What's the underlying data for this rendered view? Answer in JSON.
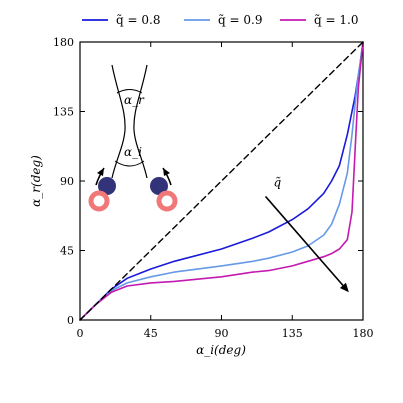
{
  "chart_data": {
    "type": "line",
    "title": "",
    "xlabel": "α_i(deg)",
    "ylabel": "α_r(deg)",
    "xlim": [
      0,
      180
    ],
    "ylim": [
      0,
      180
    ],
    "xticks": [
      "0",
      "45",
      "90",
      "135",
      "180"
    ],
    "yticks": [
      "0",
      "45",
      "90",
      "135",
      "180"
    ],
    "legend_position": "top",
    "series": [
      {
        "name": "q̃ = 0.8",
        "color": "#1a1adb",
        "x": [
          0,
          10,
          20,
          30,
          45,
          60,
          90,
          110,
          120,
          135,
          145,
          155,
          160,
          165,
          170,
          175,
          178,
          180
        ],
        "y": [
          0,
          10,
          20,
          27,
          33,
          38,
          46,
          53,
          57,
          65,
          72,
          82,
          90,
          100,
          120,
          145,
          165,
          180
        ]
      },
      {
        "name": "q̃ = 0.9",
        "color": "#6699e6",
        "x": [
          0,
          10,
          20,
          30,
          45,
          60,
          90,
          110,
          120,
          135,
          145,
          155,
          160,
          165,
          170,
          173,
          176,
          180
        ],
        "y": [
          0,
          10,
          19,
          24,
          28,
          31,
          35,
          38,
          40,
          44,
          48,
          55,
          62,
          75,
          95,
          120,
          150,
          180
        ]
      },
      {
        "name": "q̃ = 1.0",
        "color": "#c41ab0",
        "x": [
          0,
          10,
          20,
          30,
          45,
          60,
          90,
          110,
          120,
          135,
          145,
          155,
          160,
          165,
          170,
          173,
          175,
          177,
          180
        ],
        "y": [
          0,
          10,
          18,
          22,
          24,
          25,
          28,
          31,
          32,
          35,
          38,
          41,
          43,
          46,
          52,
          70,
          110,
          150,
          180
        ]
      },
      {
        "name": "diagonal",
        "color": "#000000",
        "dashed": true,
        "x": [
          0,
          180
        ],
        "y": [
          0,
          180
        ]
      }
    ],
    "annotations": {
      "arrow_label": "q̃",
      "arrow_start": [
        118,
        80
      ],
      "arrow_end": [
        171,
        18
      ],
      "inset_labels": [
        "α_r",
        "α_i"
      ]
    }
  }
}
